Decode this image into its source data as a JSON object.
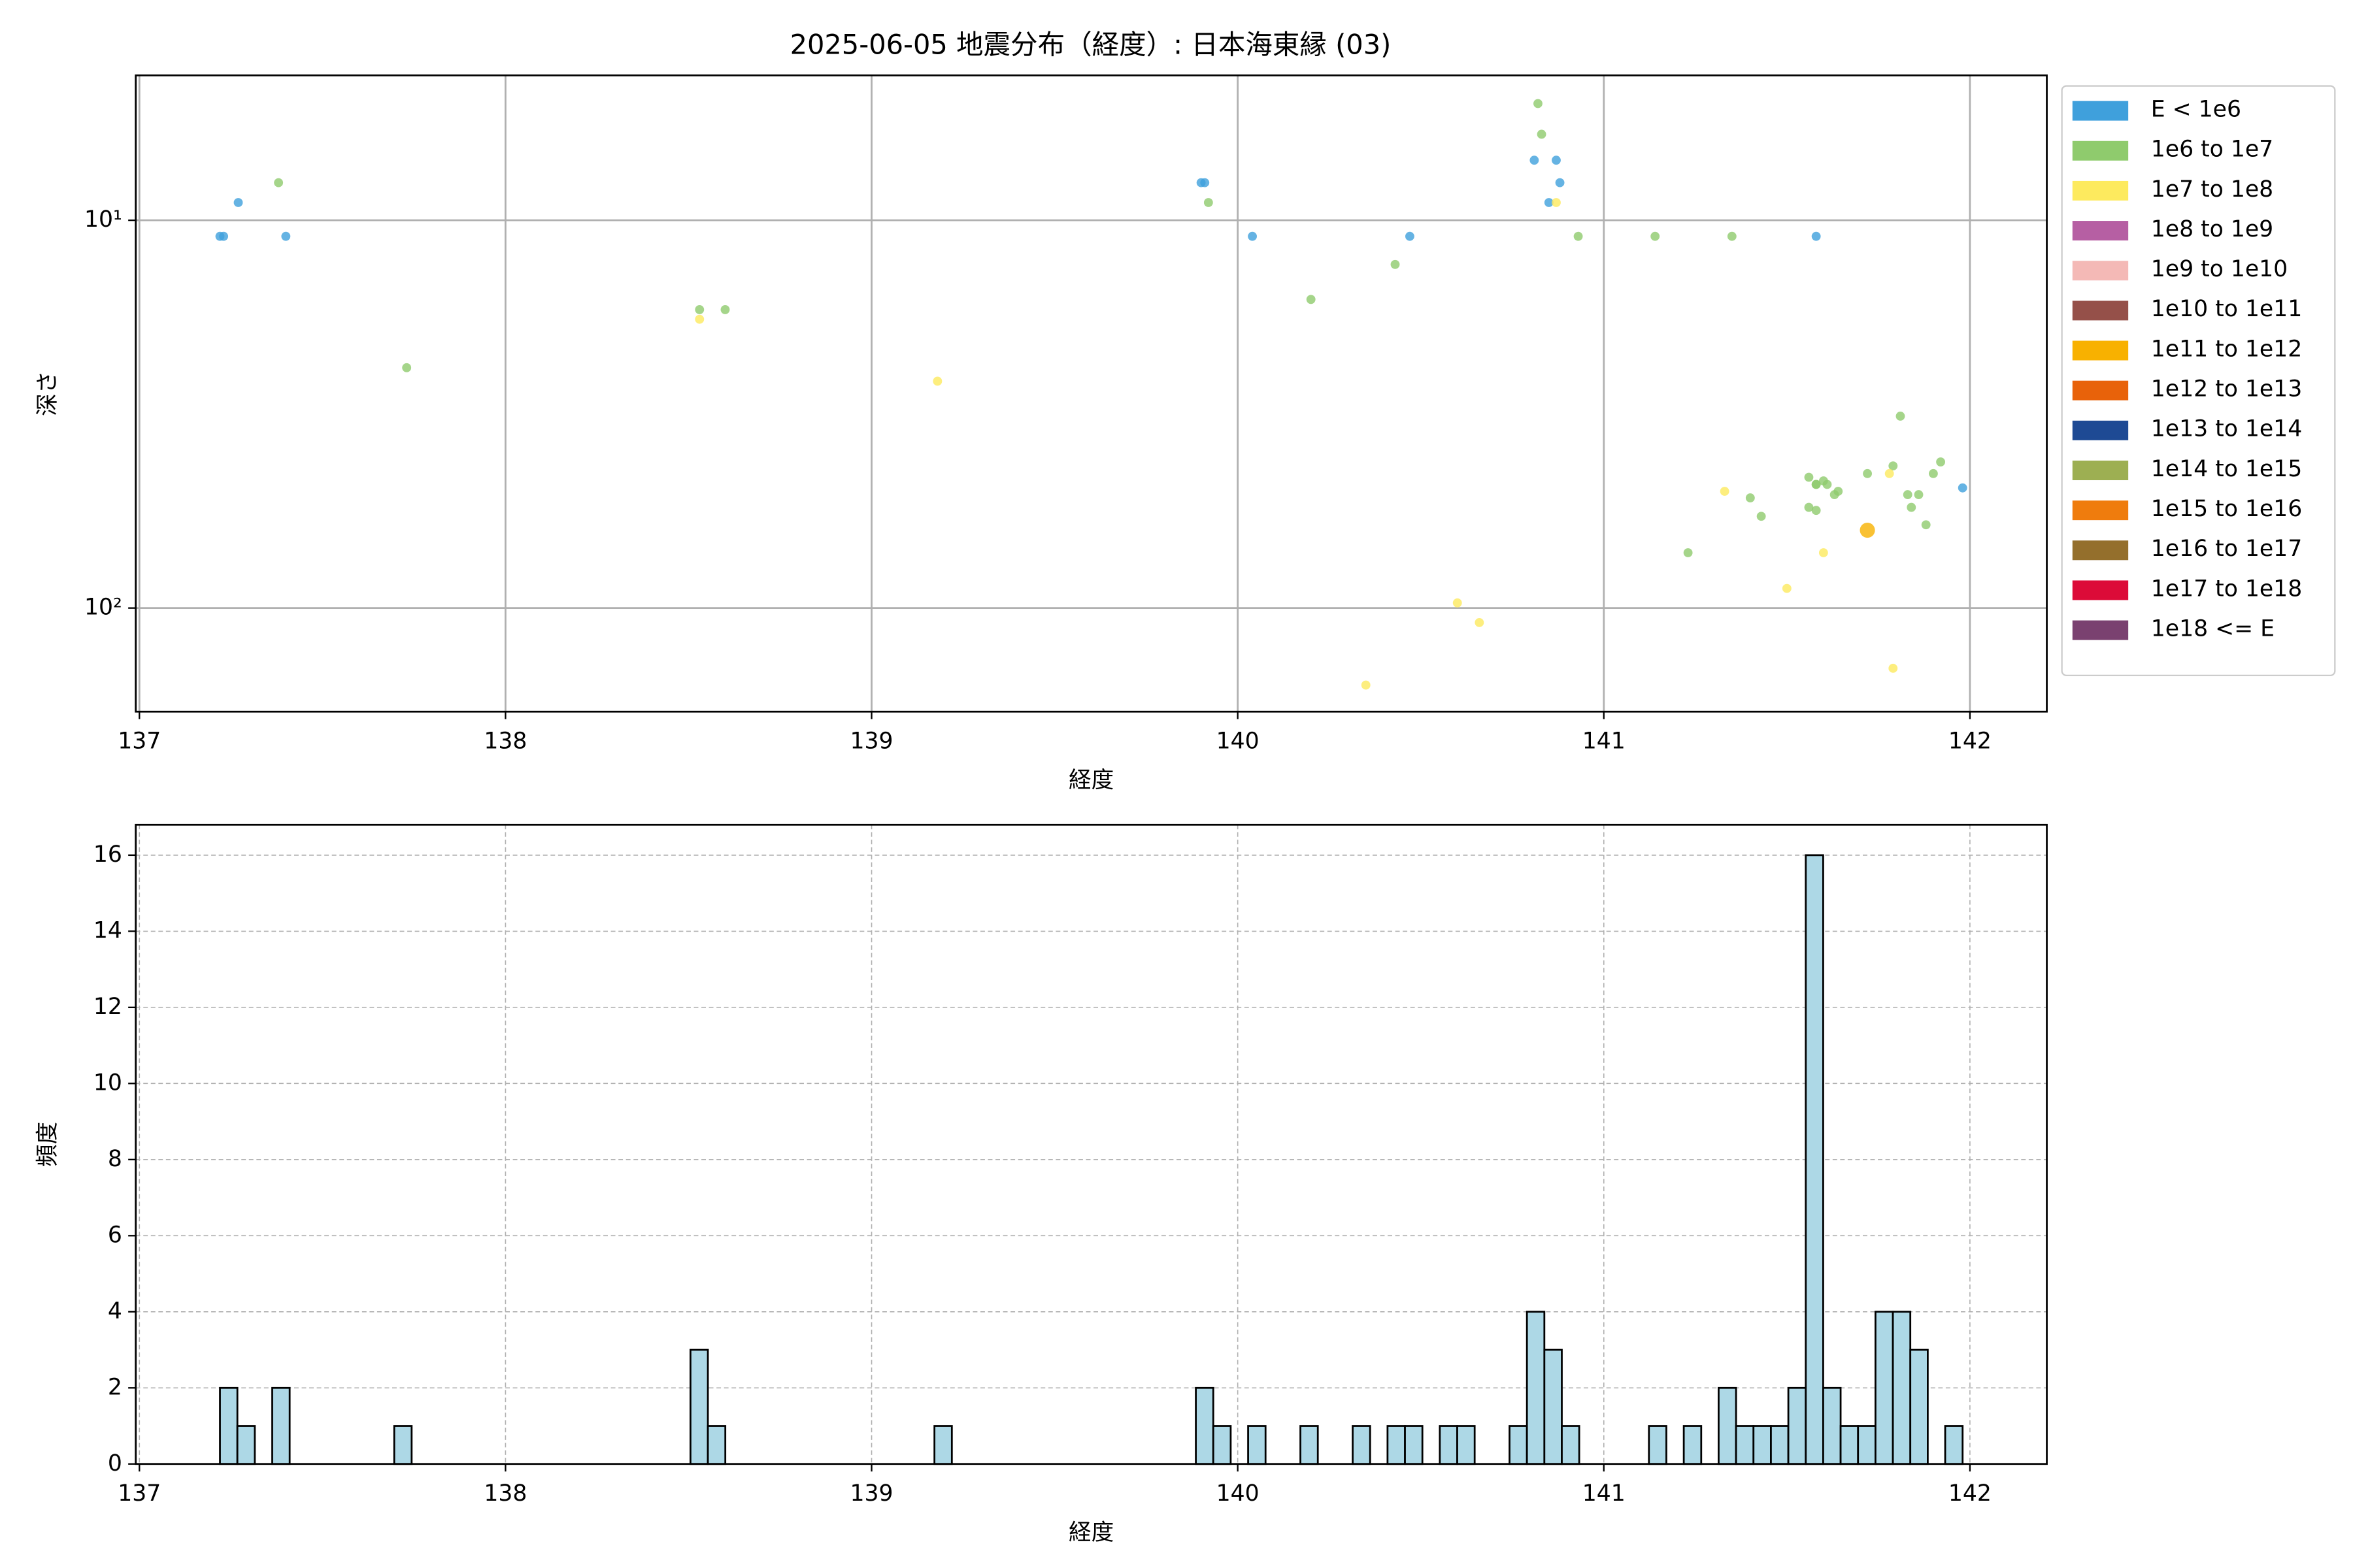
{
  "chart_data": [
    {
      "type": "scatter",
      "title": "2025-06-05 地震分布（経度）: 日本海東縁 (03)",
      "x_label": "経度",
      "y_label": "深さ",
      "xlim": [
        136.99,
        142.21
      ],
      "xticks": [
        137,
        138,
        139,
        140,
        141,
        142
      ],
      "ylim": [
        4.23,
        185
      ],
      "yscale": "log",
      "y_inverted": true,
      "yticks": [
        {
          "value": 10,
          "label": "10¹"
        },
        {
          "value": 100,
          "label": "10²"
        }
      ],
      "grid": true,
      "legend": "outside upper right",
      "series": [
        {
          "name": "E < 1e6",
          "color": "#3fa0dc",
          "x": [
            137.22,
            137.23,
            137.27,
            137.4,
            139.9,
            139.91,
            140.04,
            140.47,
            140.81,
            140.88,
            140.85,
            141.58,
            141.98,
            140.87
          ],
          "y": [
            11,
            11,
            9,
            11,
            8,
            8,
            11,
            11,
            7,
            8,
            9,
            11,
            49,
            7
          ]
        },
        {
          "name": "1e6 to 1e7",
          "color": "#8fcb6d",
          "x": [
            137.38,
            137.73,
            138.53,
            138.6,
            139.92,
            140.2,
            140.43,
            140.82,
            140.83,
            140.93,
            141.14,
            141.35,
            141.23,
            141.4,
            141.43,
            141.56,
            141.58,
            141.6,
            141.58,
            141.61,
            141.63,
            141.64,
            141.56,
            141.58,
            141.72,
            141.79,
            141.81,
            141.83,
            141.84,
            141.86,
            141.88,
            141.9,
            141.92
          ],
          "y": [
            8,
            24,
            17,
            17,
            9,
            16,
            13,
            5,
            6,
            11,
            11,
            11,
            72,
            52,
            58,
            46,
            48,
            47,
            48,
            48,
            51,
            50,
            55,
            56,
            45,
            43,
            32,
            51,
            55,
            51,
            61,
            45,
            42
          ]
        },
        {
          "name": "1e7 to 1e8",
          "color": "#fdea5e",
          "x": [
            138.53,
            139.18,
            140.6,
            140.66,
            140.35,
            140.87,
            141.33,
            141.5,
            141.6,
            141.78,
            141.79
          ],
          "y": [
            18,
            26,
            97,
            109,
            158,
            9,
            50,
            89,
            72,
            45,
            143
          ]
        },
        {
          "name": "1e8 to 1e9",
          "color": "#b65fa3",
          "x": [],
          "y": []
        },
        {
          "name": "1e9 to 1e10",
          "color": "#f4b9b6",
          "x": [],
          "y": []
        },
        {
          "name": "1e10 to 1e11",
          "color": "#955049",
          "x": [],
          "y": []
        },
        {
          "name": "1e11 to 1e12",
          "color": "#f8b100",
          "x": [
            141.72
          ],
          "y": [
            63
          ]
        },
        {
          "name": "1e12 to 1e13",
          "color": "#e8620a",
          "x": [],
          "y": []
        },
        {
          "name": "1e13 to 1e14",
          "color": "#1e4a94",
          "x": [],
          "y": []
        },
        {
          "name": "1e14 to 1e15",
          "color": "#9daf52",
          "x": [],
          "y": []
        },
        {
          "name": "1e15 to 1e16",
          "color": "#ef7c0d",
          "x": [],
          "y": []
        },
        {
          "name": "1e16 to 1e17",
          "color": "#946f2c",
          "x": [],
          "y": []
        },
        {
          "name": "1e17 to 1e18",
          "color": "#dc0b38",
          "x": [],
          "y": []
        },
        {
          "name": "1e18 <= E",
          "color": "#7a4170",
          "x": [],
          "y": []
        }
      ]
    },
    {
      "type": "histogram",
      "x_label": "経度",
      "y_label": "頻度",
      "color": "#add8e6",
      "xlim": [
        136.99,
        142.21
      ],
      "xticks": [
        137,
        138,
        139,
        140,
        141,
        142
      ],
      "ylim": [
        0,
        16.8
      ],
      "yticks": [
        0,
        2,
        4,
        6,
        8,
        10,
        12,
        14,
        16
      ],
      "grid": true,
      "bins": [
        137.22,
        137.2676,
        137.3152,
        137.3628,
        137.4104,
        137.458,
        137.5056,
        137.5532,
        137.6008,
        137.6484,
        137.696,
        137.7436,
        137.7912,
        137.8388,
        137.8864,
        137.934,
        137.9816,
        138.0292,
        138.0768,
        138.1244,
        138.172,
        138.2196,
        138.2672,
        138.3148,
        138.3624,
        138.41,
        138.4576,
        138.5052,
        138.5528,
        138.6004,
        138.648,
        138.6956,
        138.7432,
        138.7908,
        138.8384,
        138.886,
        138.9336,
        138.9812,
        139.0288,
        139.0764,
        139.124,
        139.1716,
        139.2192,
        139.2668,
        139.3144,
        139.362,
        139.4096,
        139.4572,
        139.5048,
        139.5524,
        139.6,
        139.6476,
        139.6952,
        139.7428,
        139.7904,
        139.838,
        139.8856,
        139.9332,
        139.9808,
        140.0284,
        140.076,
        140.1236,
        140.1712,
        140.2188,
        140.2664,
        140.314,
        140.3616,
        140.4092,
        140.4568,
        140.5044,
        140.552,
        140.5996,
        140.6472,
        140.6948,
        140.7424,
        140.79,
        140.8376,
        140.8852,
        140.9328,
        140.9804,
        141.028,
        141.0756,
        141.1232,
        141.1708,
        141.2184,
        141.266,
        141.3136,
        141.3612,
        141.4088,
        141.4564,
        141.504,
        141.5516,
        141.5992,
        141.6468,
        141.6944,
        141.742,
        141.7896,
        141.8372,
        141.8848,
        141.9324,
        141.98
      ],
      "values": [
        2,
        1,
        0,
        2,
        0,
        0,
        0,
        0,
        0,
        0,
        1,
        0,
        0,
        0,
        0,
        0,
        0,
        0,
        0,
        0,
        0,
        0,
        0,
        0,
        0,
        0,
        0,
        3,
        1,
        0,
        0,
        0,
        0,
        0,
        0,
        0,
        0,
        0,
        0,
        0,
        0,
        1,
        0,
        0,
        0,
        0,
        0,
        0,
        0,
        0,
        0,
        0,
        0,
        0,
        0,
        0,
        2,
        1,
        0,
        1,
        0,
        0,
        1,
        0,
        0,
        1,
        0,
        1,
        1,
        0,
        1,
        1,
        0,
        0,
        1,
        4,
        3,
        1,
        0,
        0,
        0,
        0,
        1,
        0,
        1,
        0,
        2,
        1,
        1,
        1,
        2,
        16,
        2,
        1,
        1,
        4,
        4,
        3,
        0,
        1
      ]
    }
  ]
}
